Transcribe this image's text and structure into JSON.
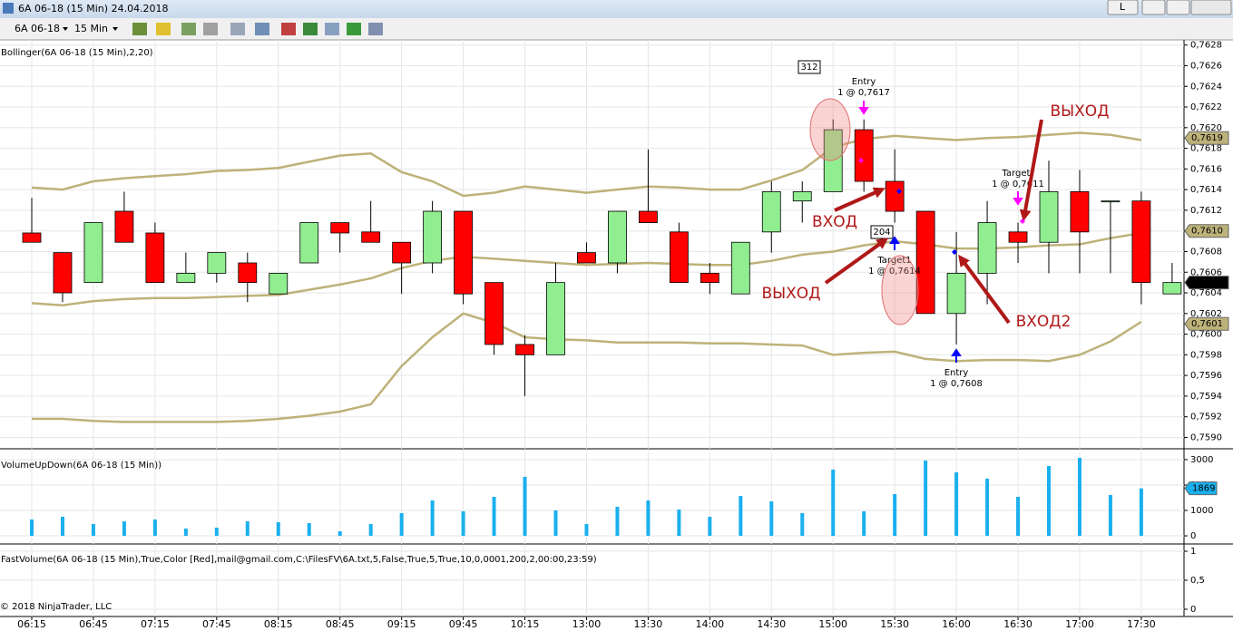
{
  "window": {
    "title": "6A 06-18 (15 Min)  24.04.2018",
    "button": "L"
  },
  "toolbar": {
    "instrument": "6A 06-18",
    "period": "15 Min"
  },
  "copyright": "© 2018 NinjaTrader, LLC",
  "chart_data": [
    {
      "type": "candlestick",
      "title": "Bollinger(6A 06-18 (15 Min),2,20)",
      "categories": [
        "06:15",
        null,
        "06:45",
        null,
        "07:15",
        null,
        "07:45",
        null,
        "08:15",
        null,
        "08:45",
        null,
        "09:15",
        null,
        "09:45",
        null,
        "10:15",
        null,
        "13:00",
        null,
        "13:30",
        null,
        "14:00",
        null,
        "14:30",
        null,
        "15:00",
        null,
        "15:30",
        null,
        "16:00",
        null,
        "16:30",
        null,
        "17:00",
        null,
        "17:30",
        null
      ],
      "open": [
        0.76098,
        0.76079,
        0.7605,
        0.76119,
        0.76098,
        0.7605,
        0.76059,
        0.76069,
        0.76039,
        0.76069,
        0.76108,
        0.76099,
        0.76089,
        0.76069,
        0.76119,
        0.7605,
        0.7599,
        0.7598,
        0.76079,
        0.76069,
        0.76119,
        0.76099,
        0.76059,
        0.76039,
        0.76099,
        0.76129,
        0.76138,
        0.76198,
        0.76148,
        0.76119,
        0.7602,
        0.76059,
        0.76099,
        0.76089,
        0.76138,
        0.76129,
        0.76129,
        0.76039
      ],
      "high": [
        0.76132,
        0.76079,
        0.76108,
        0.76138,
        0.76108,
        0.76079,
        0.76079,
        0.76079,
        0.76059,
        0.76108,
        0.76108,
        0.76129,
        0.76089,
        0.76129,
        0.76119,
        0.7605,
        0.75999,
        0.76069,
        0.76089,
        0.76119,
        0.76179,
        0.76108,
        0.76069,
        0.76089,
        0.76148,
        0.76148,
        0.76208,
        0.76208,
        0.76179,
        0.76119,
        0.76099,
        0.76129,
        0.76108,
        0.76168,
        0.76159,
        0.76129,
        0.76138,
        0.76069
      ],
      "low": [
        0.76089,
        0.76031,
        0.7605,
        0.76089,
        0.7605,
        0.7605,
        0.7605,
        0.76031,
        0.76039,
        0.76069,
        0.76079,
        0.76089,
        0.76039,
        0.76059,
        0.76029,
        0.7598,
        0.7594,
        0.7598,
        0.76069,
        0.76059,
        0.76108,
        0.7605,
        0.76039,
        0.76039,
        0.76079,
        0.76108,
        0.76138,
        0.76138,
        0.76108,
        0.7602,
        0.7599,
        0.76029,
        0.76069,
        0.76059,
        0.76059,
        0.76059,
        0.76029,
        0.76039
      ],
      "close": [
        0.76089,
        0.7604,
        0.76108,
        0.76089,
        0.7605,
        0.76059,
        0.76079,
        0.7605,
        0.76059,
        0.76108,
        0.76098,
        0.76089,
        0.76069,
        0.76119,
        0.76039,
        0.7599,
        0.7598,
        0.7605,
        0.76069,
        0.76119,
        0.76108,
        0.7605,
        0.7605,
        0.76089,
        0.76138,
        0.76138,
        0.76198,
        0.76148,
        0.76119,
        0.7602,
        0.76059,
        0.76108,
        0.76089,
        0.76138,
        0.76099,
        0.76129,
        0.7605,
        0.7605
      ],
      "up_color": "#90ee90",
      "down_color": "#ff0000",
      "lines": [
        {
          "color": "#bdb27a",
          "values": [
            0.76142,
            0.7614,
            0.76148,
            0.76151,
            0.76153,
            0.76155,
            0.76158,
            0.76159,
            0.76161,
            0.76167,
            0.76173,
            0.76175,
            0.76157,
            0.76148,
            0.76134,
            0.76137,
            0.76143,
            0.7614,
            0.76137,
            0.7614,
            0.76143,
            0.76142,
            0.7614,
            0.7614,
            0.76149,
            0.76159,
            0.76181,
            0.76189,
            0.76192,
            0.7619,
            0.76188,
            0.7619,
            0.76191,
            0.76193,
            0.76195,
            0.76193,
            0.76188,
            null
          ]
        },
        {
          "color": "#bdb27a",
          "values": [
            0.7603,
            0.76028,
            0.76032,
            0.76034,
            0.76035,
            0.76035,
            0.76036,
            0.76037,
            0.76038,
            0.76043,
            0.76048,
            0.76054,
            0.76064,
            0.76071,
            0.76075,
            0.76073,
            0.76071,
            0.76069,
            0.76067,
            0.76068,
            0.76069,
            0.76068,
            0.76067,
            0.76067,
            0.76071,
            0.76077,
            0.7608,
            0.76086,
            0.7609,
            0.76087,
            0.76083,
            0.76083,
            0.76084,
            0.76086,
            0.76087,
            0.76093,
            0.76098,
            null
          ]
        },
        {
          "color": "#bdb27a",
          "values": [
            0.75918,
            0.75918,
            0.75916,
            0.75915,
            0.75915,
            0.75915,
            0.75915,
            0.75916,
            0.75918,
            0.75921,
            0.75925,
            0.75932,
            0.75969,
            0.75997,
            0.7602,
            0.76011,
            0.75997,
            0.75995,
            0.75994,
            0.75992,
            0.75992,
            0.75992,
            0.75991,
            0.75991,
            0.7599,
            0.75989,
            0.7598,
            0.75982,
            0.75983,
            0.75976,
            0.75974,
            0.75975,
            0.75975,
            0.75974,
            0.7598,
            0.75993,
            0.76012,
            null
          ]
        }
      ],
      "ylim": [
        0.75889,
        0.76285
      ],
      "yticks": [
        {
          "value": 0.759,
          "label": "0,7590"
        },
        {
          "value": 0.7592,
          "label": "0,7592"
        },
        {
          "value": 0.7594,
          "label": "0,7594"
        },
        {
          "value": 0.7596,
          "label": "0,7596"
        },
        {
          "value": 0.7598,
          "label": "0,7598"
        },
        {
          "value": 0.76,
          "label": "0,7600"
        },
        {
          "value": 0.7602,
          "label": "0,7602"
        },
        {
          "value": 0.7604,
          "label": "0,7604"
        },
        {
          "value": 0.7606,
          "label": "0,7606"
        },
        {
          "value": 0.7608,
          "label": "0,7608"
        },
        {
          "value": 0.761,
          "label": "0,7610"
        },
        {
          "value": 0.7612,
          "label": "0,7612"
        },
        {
          "value": 0.7614,
          "label": "0,7614"
        },
        {
          "value": 0.7616,
          "label": "0,7616"
        },
        {
          "value": 0.7618,
          "label": "0,7618"
        },
        {
          "value": 0.762,
          "label": "0,7620"
        },
        {
          "value": 0.7622,
          "label": "0,7622"
        },
        {
          "value": 0.7624,
          "label": "0,7624"
        },
        {
          "value": 0.7626,
          "label": "0,7626"
        },
        {
          "value": 0.7628,
          "label": "0,7628"
        }
      ],
      "grid": true,
      "price_markers": [
        {
          "value": 0.7619,
          "label": "0,7619",
          "color": "#bdb27a"
        },
        {
          "value": 0.761,
          "label": "0,7610",
          "color": "#bdb27a"
        },
        {
          "value": 0.7601,
          "label": "0,7601",
          "color": "#bdb27a"
        },
        {
          "value": 0.7605,
          "label": "0,7605",
          "color": "#000000"
        }
      ],
      "annotations": [
        "312",
        "Entry",
        "1 @ 0,7617",
        "Target",
        "1 @ 0,7611",
        "Target1",
        "1 @ 0,7614",
        "Entry",
        "1 @ 0,7608",
        "204",
        "ВХОД",
        "ВЫХОД",
        "ВЫХОД",
        "ВХОД2"
      ]
    },
    {
      "type": "bar",
      "title": "VolumeUpDown(6A 06-18 (15 Min))",
      "values": [
        643,
        750,
        464,
        571,
        643,
        286,
        321,
        571,
        536,
        500,
        179,
        464,
        893,
        1393,
        964,
        1536,
        2321,
        1000,
        464,
        1143,
        1393,
        1036,
        750,
        1571,
        1357,
        893,
        2607,
        964,
        1643,
        2964,
        2500,
        2250,
        1536,
        2750,
        3071,
        1607,
        1869,
        null
      ],
      "color": "#1ab0ee",
      "ylim": [
        -320,
        3320
      ],
      "yticks": [
        0,
        1000,
        2000,
        3000
      ],
      "last_value": 1869,
      "grid": true
    },
    {
      "type": "line",
      "title": "FastVolume(6A 06-18 (15 Min),True,Color [Red],mail@gmail.com,C:\\FilesFV\\6A.txt,5,False,True,5,True,10,0,0001,200,2,00:00,23:59)",
      "ylim": [
        -0.125,
        1.094
      ],
      "yticks": [
        0,
        {
          "value": 0.5,
          "label": "0,5"
        },
        1
      ],
      "grid": true
    }
  ]
}
